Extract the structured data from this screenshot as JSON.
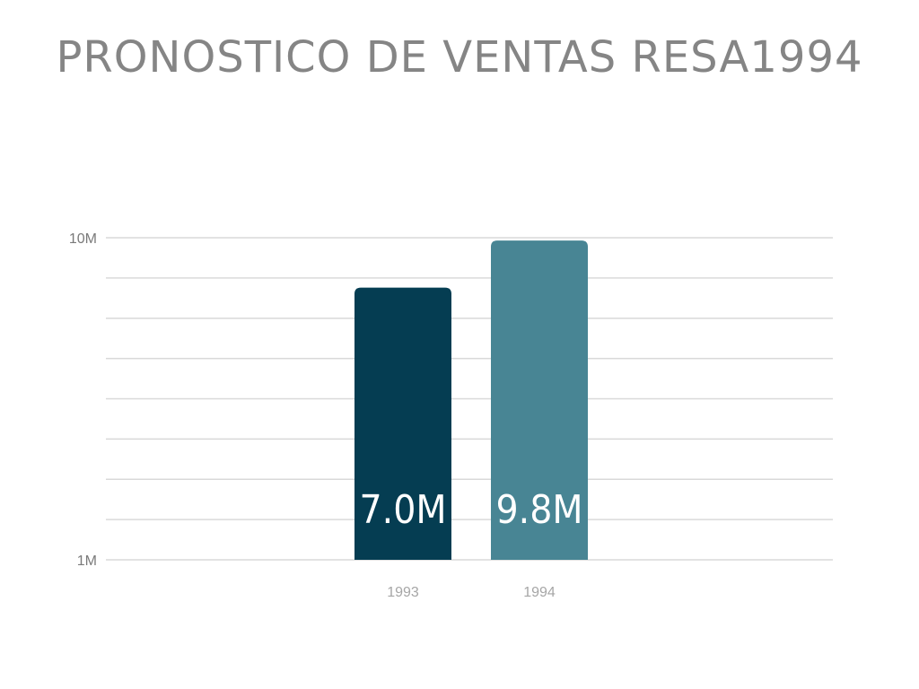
{
  "chart_data": {
    "type": "bar",
    "title": "PRONOSTICO DE VENTAS RESA1994",
    "categories": [
      "1993",
      "1994"
    ],
    "values": [
      7000000,
      9800000
    ],
    "data_labels": [
      "7.0M",
      "9.8M"
    ],
    "xlabel": "",
    "ylabel": "",
    "y_scale": "log",
    "ylim": [
      1000000,
      10000000
    ],
    "y_tick_labels": [
      {
        "value": 1000000,
        "label": "1M"
      },
      {
        "value": 10000000,
        "label": "10M"
      }
    ],
    "grid": true,
    "colors": [
      "#053d52",
      "#488594"
    ]
  }
}
